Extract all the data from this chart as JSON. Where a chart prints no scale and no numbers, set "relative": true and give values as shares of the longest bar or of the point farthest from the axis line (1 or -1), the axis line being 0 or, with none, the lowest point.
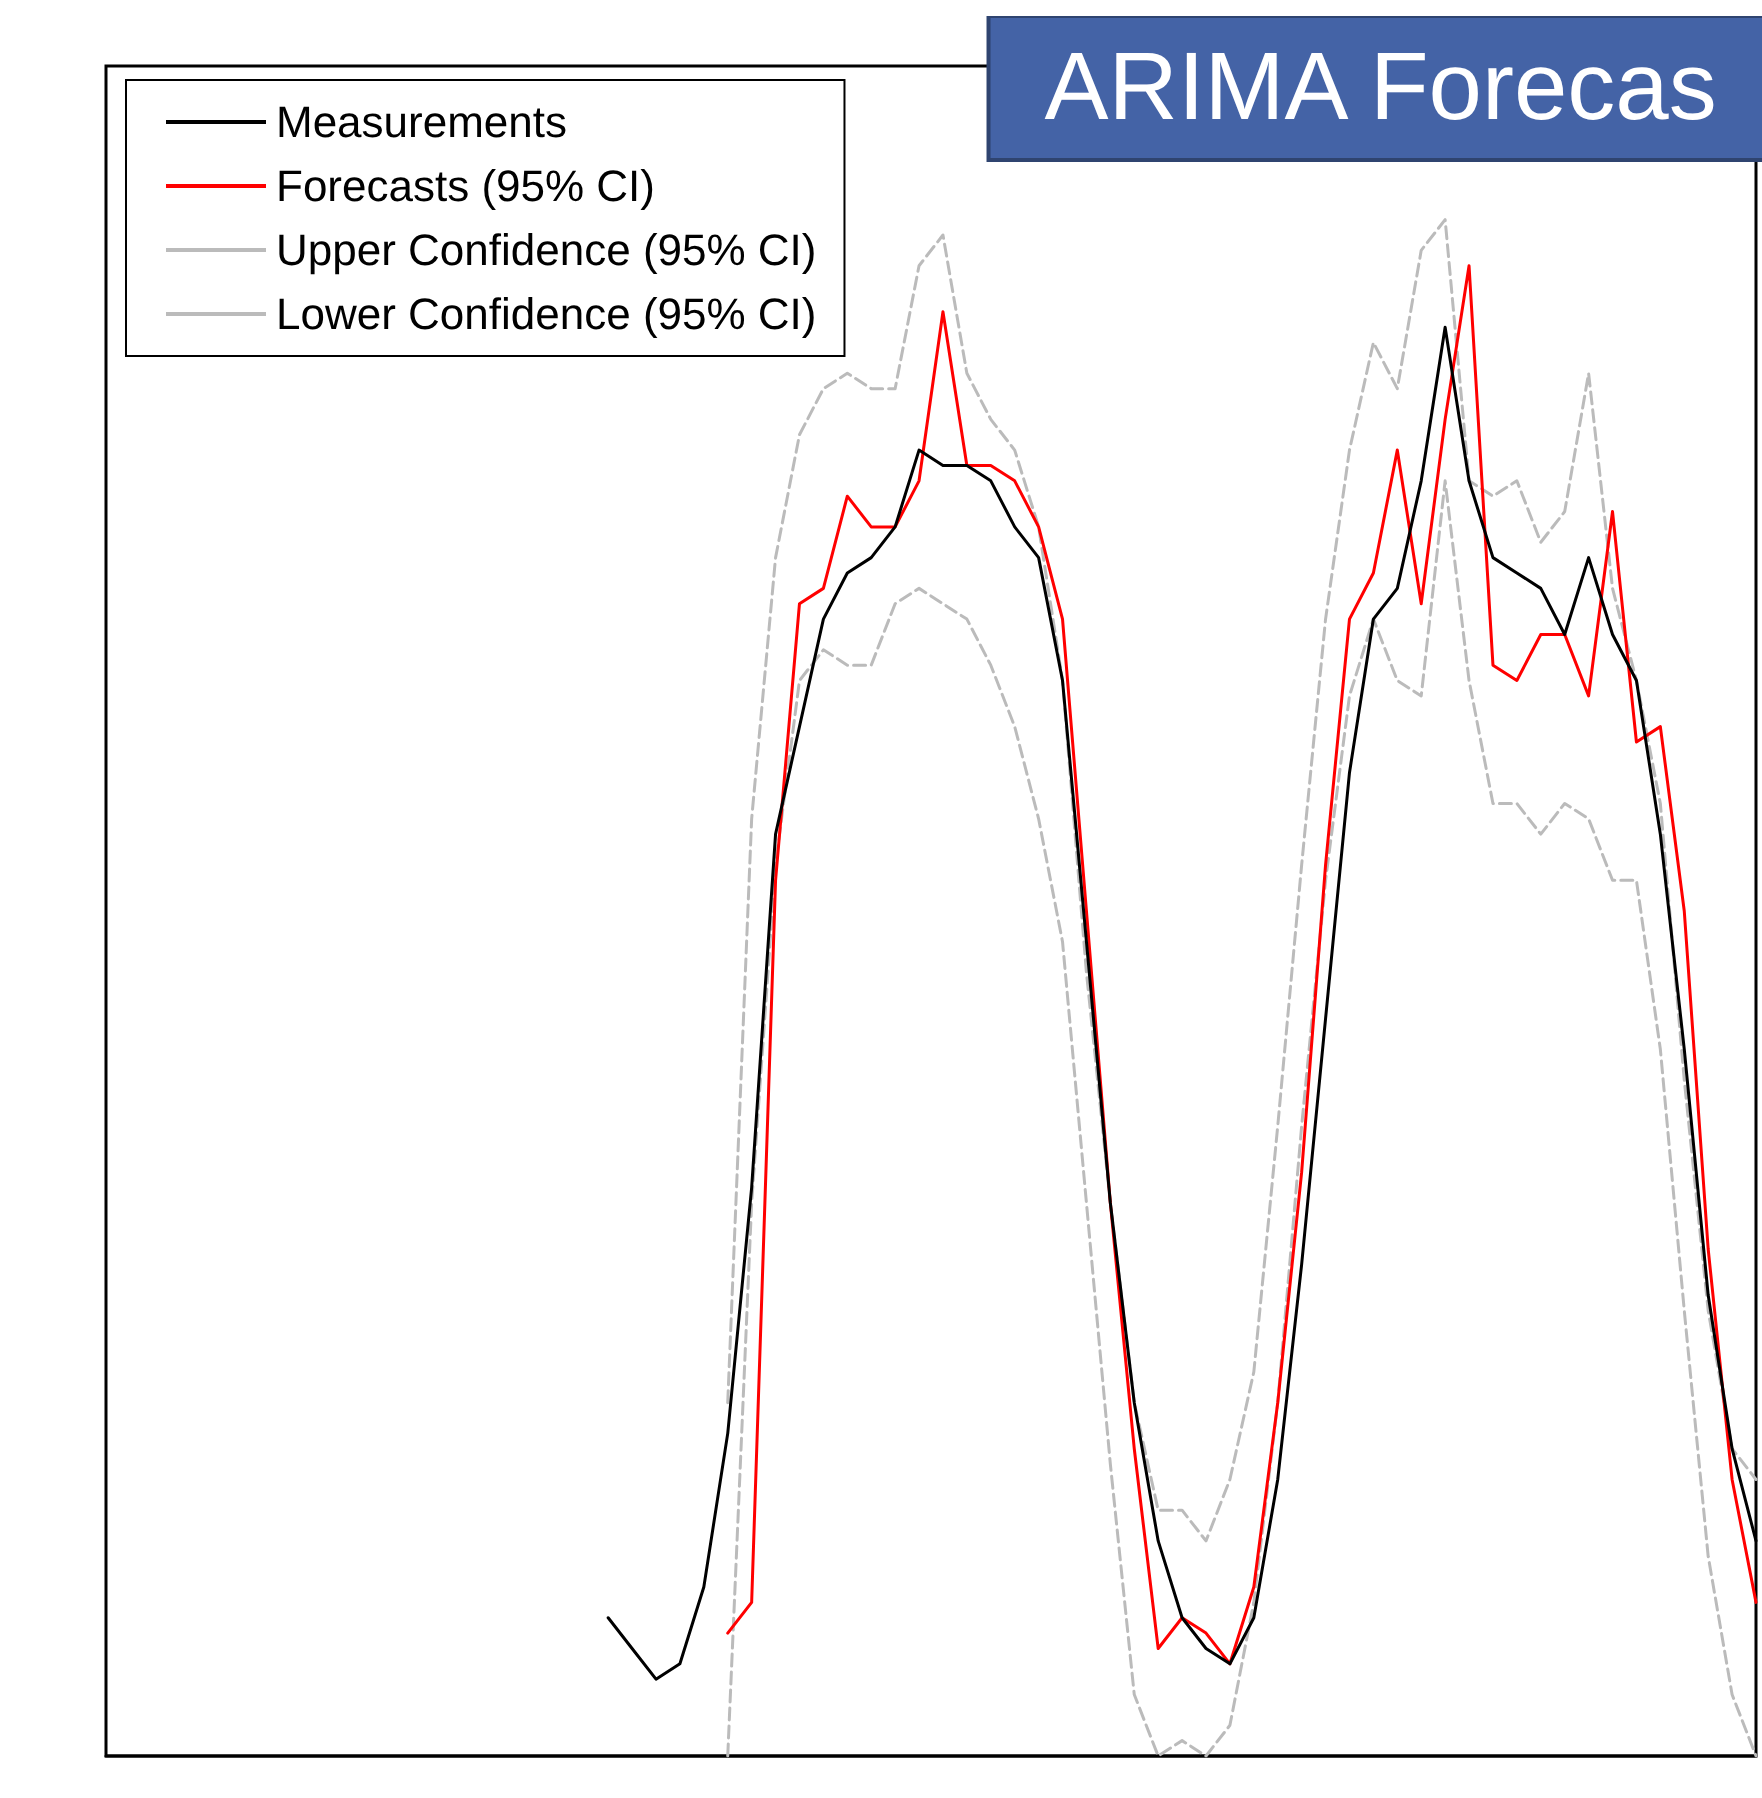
{
  "chart_data": {
    "type": "line",
    "title": "ARIMA Forecas",
    "relative": true,
    "legend": "top left",
    "grid": false,
    "categories": [
      null,
      null,
      null,
      null,
      null,
      null,
      null,
      null,
      null,
      null,
      null,
      null,
      null,
      null,
      null,
      null,
      null,
      null,
      null,
      null,
      null,
      null,
      null,
      null,
      null,
      null,
      null,
      null,
      null,
      null,
      null,
      null,
      null,
      null,
      null,
      null,
      null,
      null,
      null,
      null,
      null,
      null,
      null,
      null,
      null,
      null,
      null,
      null,
      null,
      null,
      null,
      null,
      null,
      null,
      null,
      null,
      null,
      null,
      null,
      null,
      null,
      null,
      null,
      null,
      null,
      null,
      null,
      null,
      null,
      null
    ],
    "series": [
      {
        "name": "Measurements",
        "color": "#000000",
        "line_style": "solid",
        "values": [
          null,
          null,
          null,
          null,
          null,
          null,
          null,
          null,
          null,
          null,
          null,
          null,
          null,
          null,
          null,
          null,
          null,
          null,
          null,
          null,
          null,
          0.09,
          0.07,
          0.05,
          0.06,
          0.11,
          0.21,
          0.37,
          0.6,
          0.67,
          0.74,
          0.77,
          0.78,
          0.8,
          0.85,
          0.84,
          0.84,
          0.83,
          0.8,
          0.78,
          0.7,
          0.53,
          0.36,
          0.23,
          0.14,
          0.09,
          0.07,
          0.06,
          0.09,
          0.18,
          0.32,
          0.48,
          0.64,
          0.74,
          0.76,
          0.83,
          0.93,
          0.83,
          0.78,
          0.77,
          0.76,
          0.73,
          0.78,
          0.73,
          0.7,
          0.6,
          0.46,
          0.3,
          0.2,
          0.14
        ]
      },
      {
        "name": "Forecasts (95% CI)",
        "color": "#ff0000",
        "line_style": "solid",
        "values": [
          null,
          null,
          null,
          null,
          null,
          null,
          null,
          null,
          null,
          null,
          null,
          null,
          null,
          null,
          null,
          null,
          null,
          null,
          null,
          null,
          null,
          null,
          null,
          null,
          null,
          null,
          0.08,
          0.1,
          0.57,
          0.75,
          0.76,
          0.82,
          0.8,
          0.8,
          0.83,
          0.94,
          0.84,
          0.84,
          0.83,
          0.8,
          0.74,
          0.55,
          0.36,
          0.2,
          0.07,
          0.09,
          0.08,
          0.06,
          0.11,
          0.23,
          0.38,
          0.58,
          0.74,
          0.77,
          0.85,
          0.75,
          0.87,
          0.97,
          0.71,
          0.7,
          0.73,
          0.73,
          0.69,
          0.81,
          0.66,
          0.67,
          0.55,
          0.33,
          0.18,
          0.1
        ]
      },
      {
        "name": "Upper Confidence (95% CI)",
        "color": "#bbbbbb",
        "line_style": "dashed",
        "values": [
          null,
          null,
          null,
          null,
          null,
          null,
          null,
          null,
          null,
          null,
          null,
          null,
          null,
          null,
          null,
          null,
          null,
          null,
          null,
          null,
          null,
          null,
          null,
          null,
          null,
          null,
          0.23,
          0.61,
          0.78,
          0.86,
          0.89,
          0.9,
          0.89,
          0.89,
          0.97,
          0.99,
          0.9,
          0.87,
          0.85,
          0.8,
          0.7,
          0.51,
          0.36,
          0.23,
          0.16,
          0.16,
          0.14,
          0.18,
          0.25,
          0.41,
          0.58,
          0.74,
          0.85,
          0.92,
          0.89,
          0.98,
          1.0,
          0.83,
          0.82,
          0.83,
          0.79,
          0.81,
          0.9,
          0.76,
          0.7,
          0.62,
          0.44,
          0.29,
          0.2,
          0.18
        ]
      },
      {
        "name": "Lower Confidence (95% CI)",
        "color": "#bbbbbb",
        "line_style": "dashed",
        "values": [
          null,
          null,
          null,
          null,
          null,
          null,
          null,
          null,
          null,
          null,
          null,
          null,
          null,
          null,
          null,
          null,
          null,
          null,
          null,
          null,
          null,
          null,
          null,
          null,
          null,
          null,
          0.0,
          0.36,
          0.58,
          0.7,
          0.72,
          0.71,
          0.71,
          0.75,
          0.76,
          0.75,
          0.74,
          0.71,
          0.67,
          0.61,
          0.53,
          0.36,
          0.19,
          0.04,
          0.0,
          0.01,
          0.0,
          0.02,
          0.1,
          0.23,
          0.41,
          0.57,
          0.69,
          0.74,
          0.7,
          0.69,
          0.83,
          0.7,
          0.62,
          0.62,
          0.6,
          0.62,
          0.61,
          0.57,
          0.57,
          0.46,
          0.29,
          0.13,
          0.04,
          0.0
        ]
      }
    ]
  }
}
